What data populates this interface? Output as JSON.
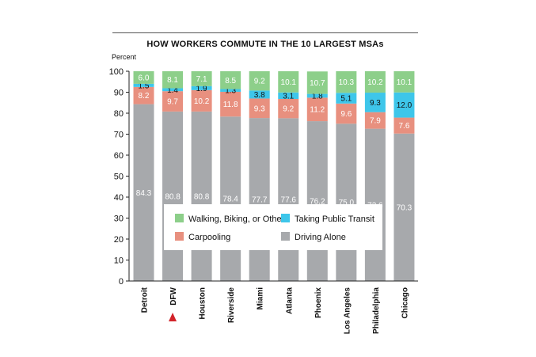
{
  "chart_data": {
    "type": "bar",
    "stacked": true,
    "title": "HOW WORKERS COMMUTE IN THE 10 LARGEST MSAs",
    "ylabel": "Percent",
    "xlabel": "",
    "ylim": [
      0,
      100
    ],
    "yticks": [
      0,
      10,
      20,
      30,
      40,
      50,
      60,
      70,
      80,
      90,
      100
    ],
    "grid": false,
    "legend_position": "center",
    "categories": [
      "Detroit",
      "DFW",
      "Houston",
      "Riverside",
      "Miami",
      "Atlanta",
      "Phoenix",
      "Los Angeles",
      "Philadelphia",
      "Chicago"
    ],
    "highlight_category": "DFW",
    "series": [
      {
        "name": "Driving Alone",
        "color": "#a7a9ac",
        "values": [
          84.3,
          80.8,
          80.8,
          78.4,
          77.7,
          77.6,
          76.2,
          75.0,
          72.6,
          70.3
        ],
        "labels": [
          "84.3",
          "80.8",
          "80.8",
          "78.4",
          "77.7",
          "77.6",
          "76.2",
          "75.0",
          "72.6",
          "70.3"
        ]
      },
      {
        "name": "Carpooling",
        "color": "#e8907f",
        "values": [
          8.2,
          9.7,
          10.2,
          11.8,
          9.3,
          9.2,
          11.2,
          9.6,
          7.9,
          7.6
        ],
        "labels": [
          "8.2",
          "9.7",
          "10.2",
          "11.8",
          "9.3",
          "9.2",
          "11.2",
          "9.6",
          "7.9",
          "7.6"
        ]
      },
      {
        "name": "Taking Public Transit",
        "color": "#3ec6ea",
        "values": [
          1.5,
          1.4,
          1.9,
          1.3,
          3.8,
          3.1,
          1.8,
          5.1,
          9.3,
          12.0
        ],
        "labels": [
          "1.5",
          "1.4",
          "1.9",
          "1.3",
          "3.8",
          "3.1",
          "1.8",
          "5.1",
          "9.3",
          "12.0"
        ]
      },
      {
        "name": "Walking, Biking, or Other",
        "color": "#8dcf8a",
        "values": [
          6.0,
          8.1,
          7.1,
          8.5,
          9.2,
          10.1,
          10.7,
          10.3,
          10.2,
          10.1
        ],
        "labels": [
          "6.0",
          "8.1",
          "7.1",
          "8.5",
          "9.2",
          "10.1",
          "10.7",
          "10.3",
          "10.2",
          "10.1"
        ]
      }
    ],
    "legend_order": [
      "Walking, Biking, or Other",
      "Taking Public Transit",
      "Carpooling",
      "Driving Alone"
    ],
    "marker_color": "#d2232a"
  }
}
